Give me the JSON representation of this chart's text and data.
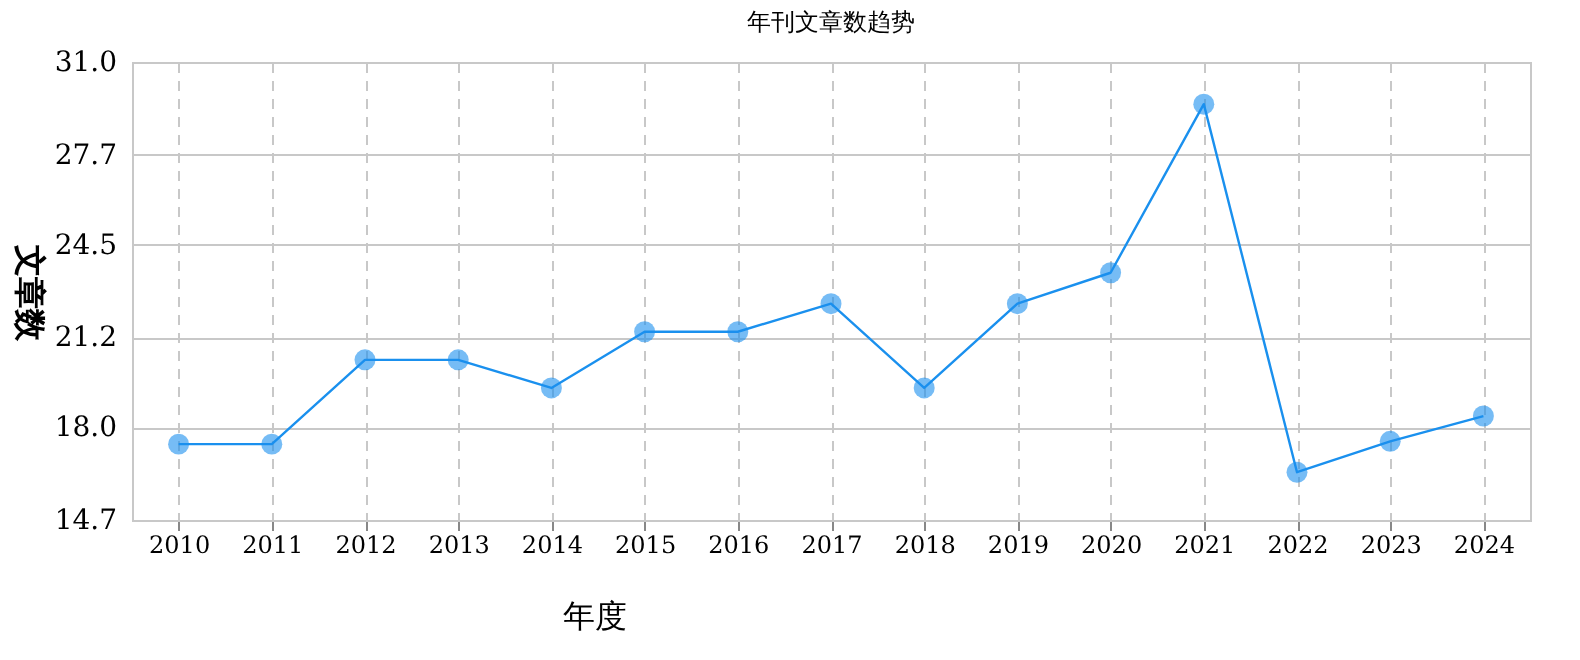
{
  "chart_data": {
    "type": "line",
    "title": "年刊文章数趋势",
    "xlabel": "年度",
    "ylabel": "文章数",
    "categories": [
      "2010",
      "2011",
      "2012",
      "2013",
      "2014",
      "2015",
      "2016",
      "2017",
      "2018",
      "2019",
      "2020",
      "2021",
      "2022",
      "2023",
      "2024"
    ],
    "series": [
      {
        "color": "#1a90ee",
        "values": [
          17.4,
          17.4,
          20.4,
          20.4,
          19.4,
          21.4,
          21.4,
          22.4,
          19.4,
          22.4,
          23.5,
          29.5,
          16.4,
          17.5,
          18.4
        ]
      }
    ],
    "ylim": [
      14.7,
      31.0
    ],
    "yticks": [
      14.7,
      {
        "value": 18,
        "label": "18.0"
      },
      21.2,
      24.5,
      27.7,
      {
        "value": 31,
        "label": "31.0"
      }
    ],
    "grid": true,
    "marker": "circle",
    "line_style": "solid"
  }
}
